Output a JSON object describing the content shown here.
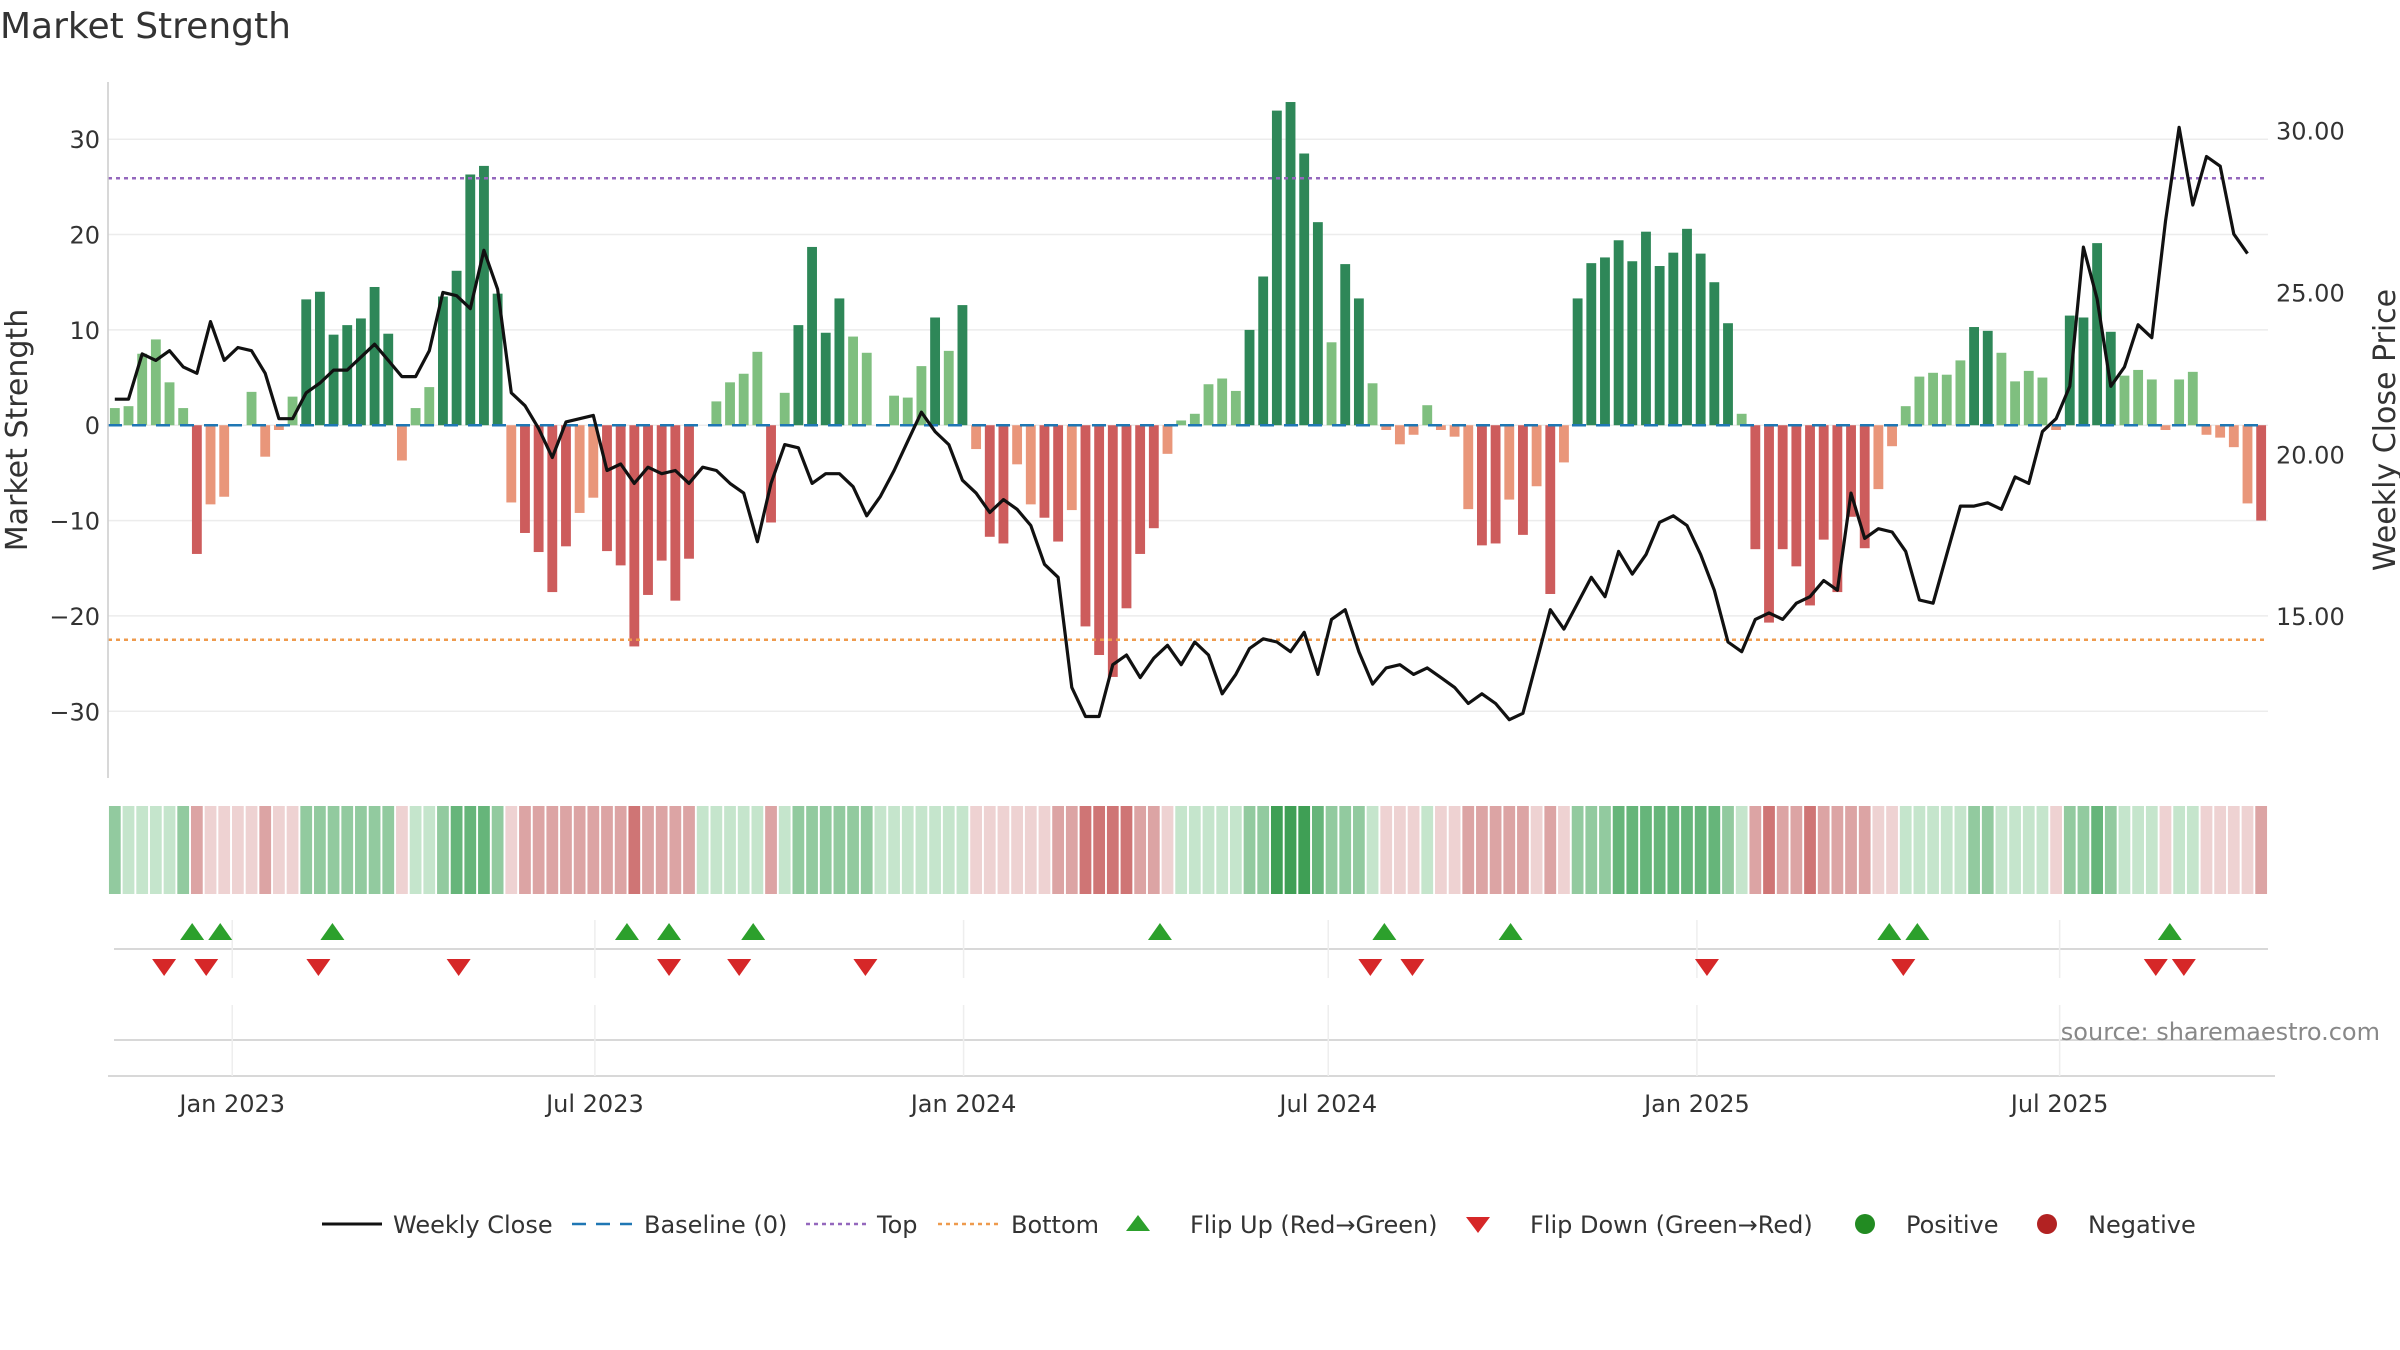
{
  "chart_data": {
    "type": "bar",
    "title": "Market Strength",
    "ylabel": "Market Strength",
    "y2label": "Weekly Close Price",
    "ylim": [
      -37,
      36
    ],
    "y2lim": [
      10.0,
      31.5
    ],
    "yticks": [
      30,
      20,
      10,
      0,
      -10,
      -20,
      -30
    ],
    "y2ticks": [
      "30.00",
      "25.00",
      "20.00",
      "15.00"
    ],
    "y2tick_values": [
      30,
      25,
      20,
      15
    ],
    "x_start": "2022-10-31",
    "x_end": "2025-10-13",
    "x_ticks": [
      {
        "label": "Jan 2023",
        "date": "2023-01-01"
      },
      {
        "label": "Jul 2023",
        "date": "2023-07-01"
      },
      {
        "label": "Jan 2024",
        "date": "2024-01-01"
      },
      {
        "label": "Jul 2024",
        "date": "2024-07-01"
      },
      {
        "label": "Jan 2025",
        "date": "2025-01-01"
      },
      {
        "label": "Jul 2025",
        "date": "2025-07-01"
      }
    ],
    "top_level": 25.9,
    "bottom_level": -22.5,
    "baseline": 0,
    "strength": [
      1.8,
      2,
      7.5,
      9,
      4.5,
      1.8,
      -13.5,
      -8.3,
      -7.5,
      0,
      3.5,
      -3.3,
      -0.5,
      3,
      13.2,
      14,
      9.5,
      10.5,
      11.2,
      14.5,
      9.6,
      -3.7,
      1.8,
      4,
      13.5,
      16.2,
      26.3,
      27.2,
      13.8,
      -8.1,
      -11.3,
      -13.3,
      -17.5,
      -12.7,
      -9.2,
      -7.6,
      -13.2,
      -14.7,
      -23.2,
      -17.8,
      -14.2,
      -18.4,
      -14,
      0,
      2.5,
      4.5,
      5.4,
      7.7,
      -10.2,
      3.4,
      10.5,
      18.7,
      9.7,
      13.3,
      9.3,
      7.6,
      0,
      3.1,
      2.9,
      6.2,
      11.3,
      7.8,
      12.6,
      -2.5,
      -11.7,
      -12.4,
      -4.1,
      -8.3,
      -9.7,
      -12.2,
      -8.9,
      -21.1,
      -24.1,
      -26.4,
      -19.2,
      -13.5,
      -10.8,
      -3,
      0.5,
      1.2,
      4.3,
      4.9,
      3.6,
      10,
      15.6,
      33,
      33.9,
      28.5,
      21.3,
      8.7,
      16.9,
      13.3,
      4.4,
      -0.5,
      -2,
      -1,
      2.1,
      -0.5,
      -1.2,
      -8.8,
      -12.6,
      -12.4,
      -7.8,
      -11.5,
      -6.4,
      -17.7,
      -3.9,
      13.3,
      17,
      17.6,
      19.4,
      17.2,
      20.3,
      16.7,
      18.1,
      20.6,
      18,
      15,
      10.7,
      1.2,
      -13,
      -20.7,
      -13,
      -14.8,
      -18.9,
      -12,
      -17.5,
      -9.6,
      -12.9,
      -6.7,
      -2.2,
      2,
      5.1,
      5.5,
      5.3,
      6.8,
      10.3,
      9.9,
      7.6,
      4.6,
      5.7,
      5,
      -0.5,
      11.5,
      11.3,
      19.1,
      9.8,
      5.2,
      5.8,
      4.8,
      -0.5,
      4.8,
      5.6,
      -1,
      -1.3,
      -2.3,
      -8.2,
      -10
    ],
    "close": [
      21.7,
      21.7,
      23.1,
      22.9,
      23.2,
      22.7,
      22.5,
      24.1,
      22.9,
      23.3,
      23.2,
      22.5,
      21.1,
      21.1,
      21.9,
      22.2,
      22.6,
      22.6,
      23,
      23.4,
      22.9,
      22.4,
      22.4,
      23.2,
      25,
      24.9,
      24.5,
      26.3,
      25.1,
      21.9,
      21.5,
      20.8,
      19.9,
      21,
      21.1,
      21.2,
      19.5,
      19.7,
      19.1,
      19.6,
      19.4,
      19.5,
      19.1,
      19.6,
      19.5,
      19.1,
      18.8,
      17.3,
      19.1,
      20.3,
      20.2,
      19.1,
      19.4,
      19.4,
      19,
      18.1,
      18.7,
      19.5,
      20.4,
      21.3,
      20.7,
      20.3,
      19.2,
      18.8,
      18.2,
      18.6,
      18.3,
      17.8,
      16.6,
      16.2,
      12.8,
      11.9,
      11.9,
      13.5,
      13.8,
      13.1,
      13.7,
      14.1,
      13.5,
      14.2,
      13.8,
      12.6,
      13.2,
      14,
      14.3,
      14.2,
      13.9,
      14.5,
      13.2,
      14.9,
      15.2,
      13.9,
      12.9,
      13.4,
      13.5,
      13.2,
      13.4,
      13.1,
      12.8,
      12.3,
      12.6,
      12.3,
      11.8,
      12,
      13.6,
      15.2,
      14.6,
      15.4,
      16.2,
      15.6,
      17,
      16.3,
      16.9,
      17.9,
      18.1,
      17.8,
      16.9,
      15.8,
      14.2,
      13.9,
      14.9,
      15.1,
      14.9,
      15.4,
      15.6,
      16.1,
      15.8,
      18.8,
      17.4,
      17.7,
      17.6,
      17,
      15.5,
      15.4,
      16.9,
      18.4,
      18.4,
      18.5,
      18.3,
      19.3,
      19.1,
      20.7,
      21.1,
      22.1,
      26.4,
      24.8,
      22.1,
      22.7,
      24,
      23.6,
      27.2,
      30.1,
      27.7,
      29.2,
      28.9,
      26.8,
      26.2
    ],
    "strength_band_levels": [
      2,
      1,
      1,
      1,
      1,
      2,
      -2,
      -1,
      -1,
      -1,
      -1,
      -2,
      -1,
      -1,
      2,
      2,
      2,
      2,
      2,
      2,
      2,
      -1,
      1,
      1,
      2,
      3,
      3,
      3,
      2,
      -1,
      -2,
      -2,
      -2,
      -2,
      -2,
      -2,
      -2,
      -2,
      -3,
      -2,
      -2,
      -2,
      -2,
      1,
      1,
      1,
      1,
      1,
      -2,
      1,
      2,
      2,
      2,
      2,
      2,
      2,
      1,
      1,
      1,
      1,
      1,
      1,
      1,
      -1,
      -1,
      -1,
      -1,
      -1,
      -1,
      -2,
      -2,
      -3,
      -3,
      -3,
      -3,
      -2,
      -2,
      -1,
      1,
      1,
      1,
      1,
      1,
      2,
      2,
      4,
      4,
      4,
      3,
      2,
      2,
      2,
      1,
      -1,
      -1,
      -1,
      1,
      -1,
      -1,
      -2,
      -2,
      -2,
      -2,
      -2,
      -1,
      -2,
      -1,
      2,
      2,
      2,
      3,
      3,
      3,
      3,
      3,
      3,
      3,
      3,
      2,
      1,
      -2,
      -3,
      -2,
      -2,
      -3,
      -2,
      -2,
      -2,
      -2,
      -1,
      -1,
      1,
      1,
      1,
      1,
      1,
      2,
      2,
      1,
      1,
      1,
      1,
      -1,
      2,
      2,
      3,
      2,
      1,
      1,
      1,
      -1,
      1,
      1,
      -1,
      -1,
      -1,
      -1,
      -2
    ],
    "flip_up": [
      "2022-12-12",
      "2022-12-26",
      "2023-02-20",
      "2023-07-17",
      "2023-08-07",
      "2023-09-18",
      "2024-04-08",
      "2024-07-29",
      "2024-09-30",
      "2025-04-07",
      "2025-04-21",
      "2025-08-25"
    ],
    "flip_down": [
      "2022-11-28",
      "2022-12-19",
      "2023-02-13",
      "2023-04-24",
      "2023-08-07",
      "2023-09-11",
      "2023-11-13",
      "2024-07-22",
      "2024-08-12",
      "2025-01-06",
      "2025-04-14",
      "2025-08-18",
      "2025-09-01"
    ],
    "colors": {
      "pos_strong": "#2e8758",
      "pos_weak": "#7fbf7f",
      "neg_strong": "#cd5c5c",
      "neg_weak": "#e9967a",
      "close_line": "#111111",
      "baseline": "#1f77b4",
      "top": "#9467bd",
      "bottom": "#ee9a4d",
      "flip_up": "#2ca02c",
      "flip_down": "#d62728",
      "positive": "#228b22",
      "negative": "#b22222"
    }
  },
  "legend": {
    "weekly_close": "Weekly Close",
    "baseline": "Baseline (0)",
    "top": "Top",
    "bottom": "Bottom",
    "flip_up": "Flip Up (Red→Green)",
    "flip_down": "Flip Down (Green→Red)",
    "positive": "Positive",
    "negative": "Negative"
  },
  "source": "source: sharemaestro.com"
}
